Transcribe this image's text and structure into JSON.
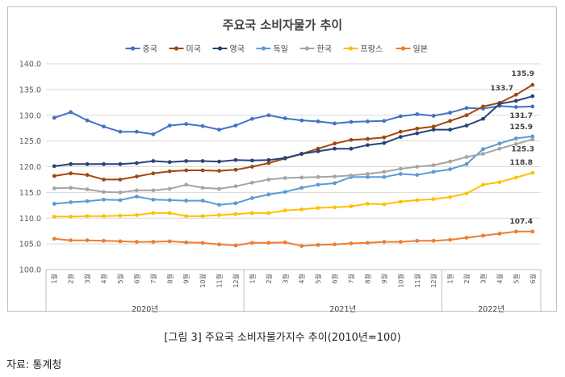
{
  "chart_data": {
    "type": "line",
    "title": "주요국 소비자물가 추이",
    "ylim": [
      100.0,
      140.0
    ],
    "yticks": [
      100.0,
      105.0,
      110.0,
      115.0,
      120.0,
      125.0,
      130.0,
      135.0,
      140.0
    ],
    "categories": [
      "1월",
      "2월",
      "3월",
      "4월",
      "5월",
      "6월",
      "7월",
      "8월",
      "9월",
      "10월",
      "11월",
      "12월",
      "1월",
      "2월",
      "3월",
      "4월",
      "5월",
      "6월",
      "7월",
      "8월",
      "9월",
      "10월",
      "11월",
      "12월",
      "1월",
      "2월",
      "3월",
      "4월",
      "5월",
      "6월"
    ],
    "year_groups": [
      {
        "label": "2020년",
        "count": 12
      },
      {
        "label": "2021년",
        "count": 12
      },
      {
        "label": "2022년",
        "count": 6
      }
    ],
    "series": [
      {
        "name": "중국",
        "color": "#4472c4",
        "values": [
          129.5,
          130.6,
          129.0,
          127.8,
          126.8,
          126.8,
          126.3,
          128.0,
          128.3,
          127.9,
          127.2,
          128.0,
          129.3,
          130.0,
          129.4,
          129.0,
          128.8,
          128.4,
          128.7,
          128.8,
          128.9,
          129.8,
          130.2,
          129.9,
          130.5,
          131.4,
          131.3,
          131.8,
          131.6,
          131.7
        ]
      },
      {
        "name": "미국",
        "color": "#9e480e",
        "values": [
          118.2,
          118.7,
          118.4,
          117.5,
          117.5,
          118.1,
          118.7,
          119.1,
          119.3,
          119.3,
          119.2,
          119.4,
          120.0,
          120.7,
          121.6,
          122.5,
          123.5,
          124.5,
          125.2,
          125.4,
          125.7,
          126.8,
          127.4,
          127.8,
          128.9,
          130.0,
          131.7,
          132.4,
          134.0,
          135.9
        ]
      },
      {
        "name": "영국",
        "color": "#264478",
        "values": [
          120.1,
          120.5,
          120.5,
          120.5,
          120.5,
          120.7,
          121.1,
          120.9,
          121.1,
          121.1,
          121.0,
          121.3,
          121.2,
          121.3,
          121.7,
          122.5,
          123.0,
          123.5,
          123.5,
          124.2,
          124.6,
          125.8,
          126.5,
          127.2,
          127.2,
          128.0,
          129.3,
          132.2,
          132.8,
          133.7
        ]
      },
      {
        "name": "독일",
        "color": "#5b9bd5",
        "values": [
          112.8,
          113.1,
          113.3,
          113.6,
          113.5,
          114.2,
          113.6,
          113.5,
          113.4,
          113.4,
          112.6,
          112.9,
          113.9,
          114.6,
          115.1,
          115.9,
          116.5,
          116.8,
          118.0,
          118.0,
          118.0,
          118.6,
          118.4,
          119.0,
          119.5,
          120.5,
          123.4,
          124.5,
          125.5,
          125.9
        ]
      },
      {
        "name": "한국",
        "color": "#a5a5a5",
        "values": [
          115.8,
          115.9,
          115.6,
          115.1,
          115.0,
          115.4,
          115.4,
          115.7,
          116.5,
          115.9,
          115.7,
          116.2,
          116.9,
          117.5,
          117.8,
          117.9,
          118.0,
          118.1,
          118.3,
          118.6,
          119.0,
          119.6,
          120.0,
          120.3,
          121.0,
          121.9,
          122.5,
          123.5,
          124.4,
          125.3
        ]
      },
      {
        "name": "프랑스",
        "color": "#ffc000",
        "values": [
          110.3,
          110.3,
          110.4,
          110.4,
          110.5,
          110.6,
          111.0,
          111.0,
          110.4,
          110.4,
          110.6,
          110.8,
          111.0,
          111.0,
          111.5,
          111.7,
          112.0,
          112.1,
          112.3,
          112.8,
          112.7,
          113.2,
          113.5,
          113.7,
          114.1,
          114.8,
          116.5,
          117.0,
          117.9,
          118.8
        ]
      },
      {
        "name": "일본",
        "color": "#ed7d31",
        "values": [
          106.0,
          105.7,
          105.7,
          105.6,
          105.5,
          105.4,
          105.4,
          105.5,
          105.3,
          105.2,
          104.9,
          104.7,
          105.2,
          105.2,
          105.3,
          104.6,
          104.8,
          104.9,
          105.1,
          105.2,
          105.4,
          105.4,
          105.6,
          105.6,
          105.8,
          106.2,
          106.6,
          107.0,
          107.4,
          107.4
        ]
      }
    ],
    "annotations": [
      {
        "text": "135.9",
        "series": "미국"
      },
      {
        "text": "133.7",
        "series": "영국"
      },
      {
        "text": "131.7",
        "series": "중국"
      },
      {
        "text": "125.9",
        "series": "독일"
      },
      {
        "text": "125.3",
        "series": "한국"
      },
      {
        "text": "118.8",
        "series": "프랑스"
      },
      {
        "text": "107.4",
        "series": "일본"
      }
    ]
  },
  "caption": "[그림 3] 주요국 소비자물가지수 추이(2010년=100)",
  "source": "자료: 통계청"
}
